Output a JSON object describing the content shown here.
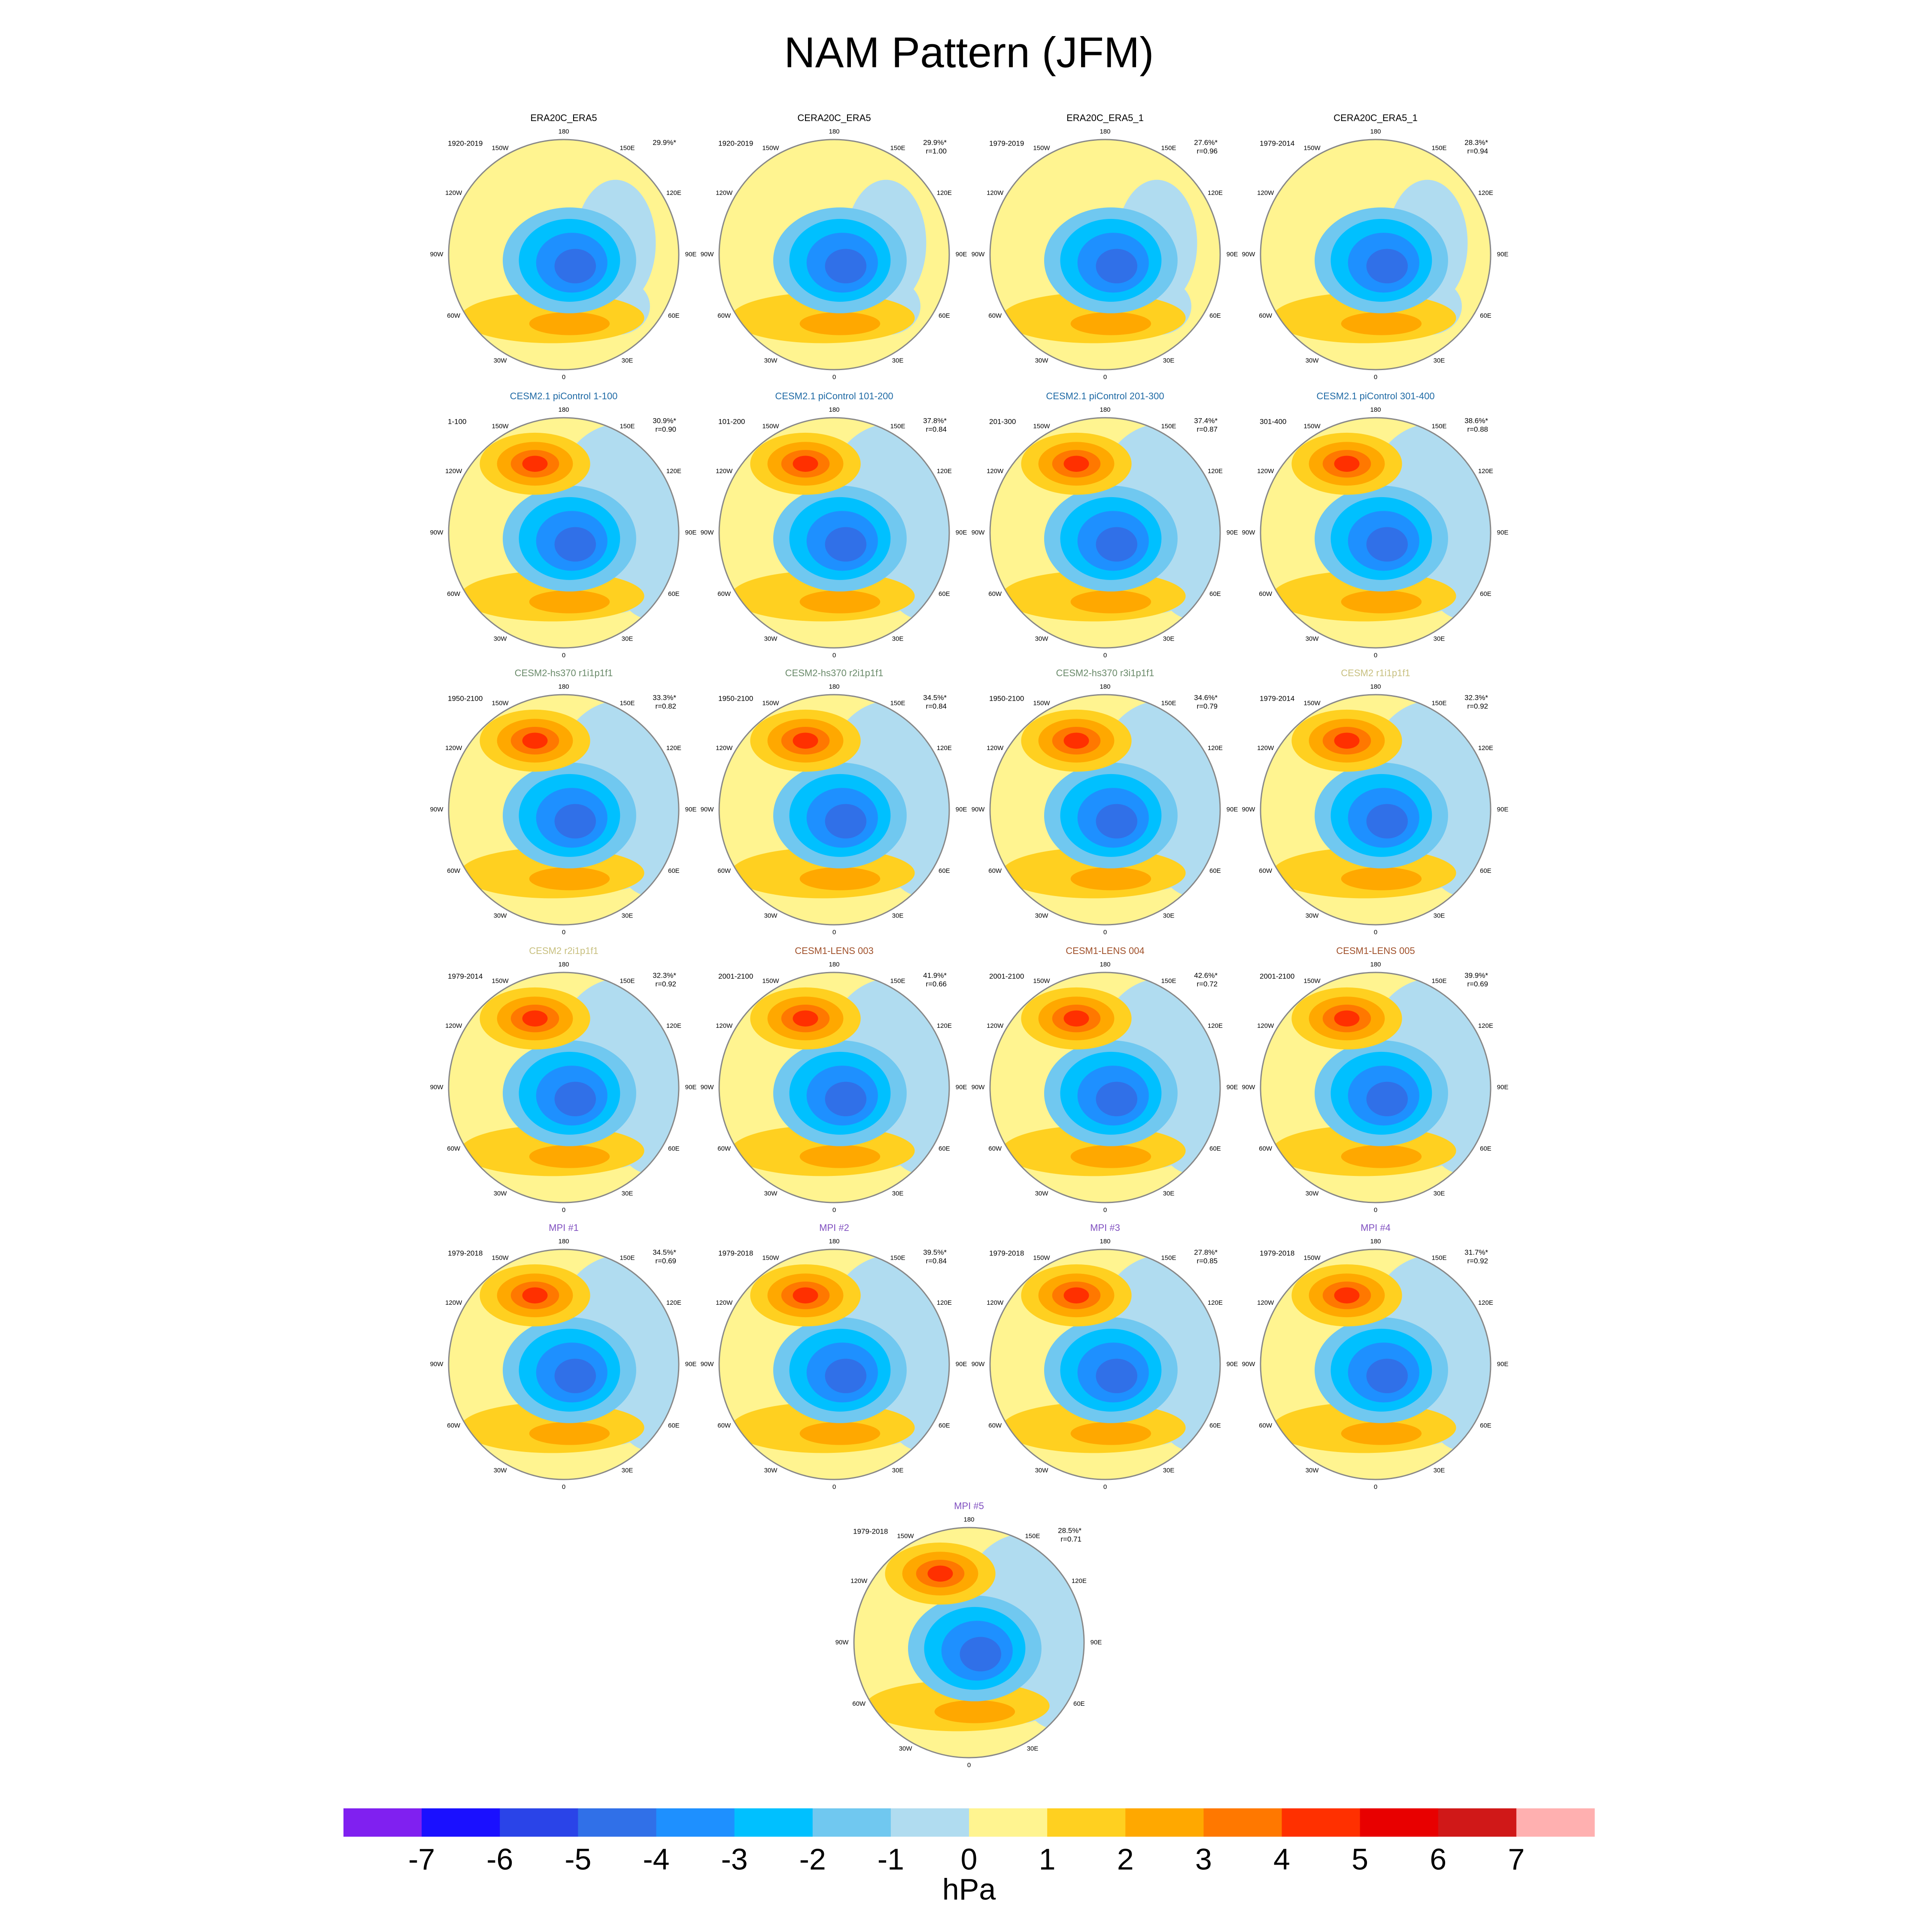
{
  "title": "NAM Pattern (JFM)",
  "lon_labels": [
    "180",
    "150E",
    "120E",
    "90E",
    "60E",
    "30E",
    "0",
    "30W",
    "60W",
    "90W",
    "120W",
    "150W"
  ],
  "panels": [
    {
      "title": "ERA20C_ERA5",
      "title_color": "#000000",
      "period": "1920-2019",
      "variance": "29.9%*"
    },
    {
      "title": "CERA20C_ERA5",
      "title_color": "#000000",
      "period": "1920-2019",
      "variance": "29.9%*",
      "r": "r=1.00"
    },
    {
      "title": "ERA20C_ERA5_1",
      "title_color": "#000000",
      "period": "1979-2019",
      "variance": "27.6%*",
      "r": "r=0.96"
    },
    {
      "title": "CERA20C_ERA5_1",
      "title_color": "#000000",
      "period": "1979-2014",
      "variance": "28.3%*",
      "r": "r=0.94"
    },
    {
      "title": "CESM2.1 piControl 1-100",
      "title_color": "#1f6aa5",
      "period": "1-100",
      "variance": "30.9%*",
      "r": "r=0.90"
    },
    {
      "title": "CESM2.1 piControl 101-200",
      "title_color": "#1f6aa5",
      "period": "101-200",
      "variance": "37.8%*",
      "r": "r=0.84"
    },
    {
      "title": "CESM2.1 piControl 201-300",
      "title_color": "#1f6aa5",
      "period": "201-300",
      "variance": "37.4%*",
      "r": "r=0.87"
    },
    {
      "title": "CESM2.1 piControl 301-400",
      "title_color": "#1f6aa5",
      "period": "301-400",
      "variance": "38.6%*",
      "r": "r=0.88"
    },
    {
      "title": "CESM2-hs370 r1i1p1f1",
      "title_color": "#6a8a6a",
      "period": "1950-2100",
      "variance": "33.3%*",
      "r": "r=0.82"
    },
    {
      "title": "CESM2-hs370 r2i1p1f1",
      "title_color": "#6a8a6a",
      "period": "1950-2100",
      "variance": "34.5%*",
      "r": "r=0.84"
    },
    {
      "title": "CESM2-hs370 r3i1p1f1",
      "title_color": "#6a8a6a",
      "period": "1950-2100",
      "variance": "34.6%*",
      "r": "r=0.79"
    },
    {
      "title": "CESM2 r1i1p1f1",
      "title_color": "#c8c080",
      "period": "1979-2014",
      "variance": "32.3%*",
      "r": "r=0.92"
    },
    {
      "title": "CESM2 r2i1p1f1",
      "title_color": "#c8c080",
      "period": "1979-2014",
      "variance": "32.3%*",
      "r": "r=0.92"
    },
    {
      "title": "CESM1-LENS 003",
      "title_color": "#a0502a",
      "period": "2001-2100",
      "variance": "41.9%*",
      "r": "r=0.66"
    },
    {
      "title": "CESM1-LENS 004",
      "title_color": "#a0502a",
      "period": "2001-2100",
      "variance": "42.6%*",
      "r": "r=0.72"
    },
    {
      "title": "CESM1-LENS 005",
      "title_color": "#a0502a",
      "period": "2001-2100",
      "variance": "39.9%*",
      "r": "r=0.69"
    },
    {
      "title": "MPI #1",
      "title_color": "#8050c0",
      "period": "1979-2018",
      "variance": "34.5%*",
      "r": "r=0.69"
    },
    {
      "title": "MPI #2",
      "title_color": "#8050c0",
      "period": "1979-2018",
      "variance": "39.5%*",
      "r": "r=0.84"
    },
    {
      "title": "MPI #3",
      "title_color": "#8050c0",
      "period": "1979-2018",
      "variance": "27.8%*",
      "r": "r=0.85"
    },
    {
      "title": "MPI #4",
      "title_color": "#8050c0",
      "period": "1979-2018",
      "variance": "31.7%*",
      "r": "r=0.92"
    },
    {
      "title": "MPI #5",
      "title_color": "#8050c0",
      "period": "1979-2018",
      "variance": "28.5%*",
      "r": "r=0.71"
    }
  ],
  "colorbar": {
    "colors": [
      "#8020f0",
      "#1a10ff",
      "#2a44e8",
      "#3070e8",
      "#1e90ff",
      "#00c0ff",
      "#70c8f0",
      "#b0dcf0",
      "#fff490",
      "#ffd020",
      "#ffa800",
      "#ff7800",
      "#ff3000",
      "#e80000",
      "#d01818",
      "#ffb0b0"
    ],
    "ticks": [
      -7,
      -6,
      -5,
      -4,
      -3,
      -2,
      -1,
      0,
      1,
      2,
      3,
      4,
      5,
      6,
      7
    ],
    "unit": "hPa"
  }
}
